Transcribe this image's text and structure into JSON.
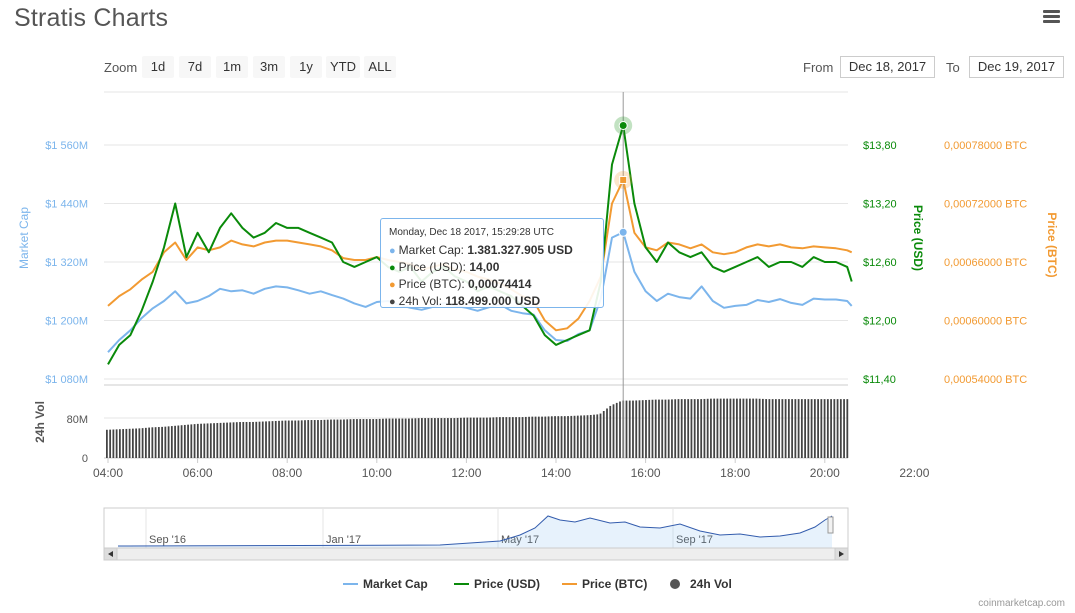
{
  "page": {
    "title": "Stratis Charts",
    "credit": "coinmarketcap.com"
  },
  "colors": {
    "market_cap": "#7cb5ec",
    "price_usd": "#0a8a0a",
    "price_btc": "#f29a32",
    "volume": "#444444",
    "axis_text": "#666666"
  },
  "toolbar": {
    "zoom_label": "Zoom",
    "zoom_buttons": [
      "1d",
      "7d",
      "1m",
      "3m",
      "1y",
      "YTD",
      "ALL"
    ],
    "from_label": "From",
    "from_value": "Dec 18, 2017",
    "to_label": "To",
    "to_value": "Dec 19, 2017"
  },
  "tooltip": {
    "header": "Monday, Dec 18 2017, 15:29:28 UTC",
    "rows": [
      {
        "label": "Market Cap:",
        "value": "1.381.327.905 USD",
        "color": "#7cb5ec"
      },
      {
        "label": "Price (USD):",
        "value": "14,00",
        "color": "#0a8a0a"
      },
      {
        "label": "Price (BTC):",
        "value": "0,00074414",
        "color": "#f29a32"
      },
      {
        "label": "24h Vol:",
        "value": "118.499.000 USD",
        "color": "#444444"
      }
    ]
  },
  "navigator": {
    "labels": [
      "Sep '16",
      "Jan '17",
      "May '17",
      "Sep '17"
    ]
  },
  "legend": [
    "Market Cap",
    "Price (USD)",
    "Price (BTC)",
    "24h Vol"
  ],
  "chart_data": {
    "type": "line",
    "x_hours": [
      4.0,
      4.25,
      4.5,
      4.75,
      5.0,
      5.25,
      5.5,
      5.75,
      6.0,
      6.25,
      6.5,
      6.75,
      7.0,
      7.25,
      7.5,
      7.75,
      8.0,
      8.25,
      8.5,
      8.75,
      9.0,
      9.25,
      9.5,
      9.75,
      10.0,
      10.25,
      10.5,
      10.75,
      11.0,
      11.25,
      11.5,
      11.75,
      12.0,
      12.25,
      12.5,
      12.75,
      13.0,
      13.25,
      13.5,
      13.75,
      14.0,
      14.25,
      14.5,
      14.75,
      15.0,
      15.25,
      15.5,
      15.75,
      16.0,
      16.25,
      16.5,
      16.75,
      17.0,
      17.25,
      17.5,
      17.75,
      18.0,
      18.25,
      18.5,
      18.75,
      19.0,
      19.25,
      19.5,
      19.75,
      20.0,
      20.25,
      20.5,
      20.6
    ],
    "x_tick_labels": [
      "04:00",
      "06:00",
      "08:00",
      "10:00",
      "12:00",
      "14:00",
      "16:00",
      "18:00",
      "20:00",
      "22:00"
    ],
    "x_ticks": [
      4,
      6,
      8,
      10,
      12,
      14,
      16,
      18,
      20,
      22
    ],
    "axes": {
      "market_cap": {
        "label": "Market Cap",
        "ticks": [
          1080,
          1200,
          1320,
          1440,
          1560
        ],
        "tick_labels": [
          "$1 080M",
          "$1 200M",
          "$1 320M",
          "$1 440M",
          "$1 560M"
        ],
        "range": [
          1080,
          1560
        ]
      },
      "price_usd": {
        "label": "Price (USD)",
        "ticks": [
          11.4,
          12.0,
          12.6,
          13.2,
          13.8
        ],
        "tick_labels": [
          "$11,40",
          "$12,00",
          "$12,60",
          "$13,20",
          "$13,80"
        ],
        "range": [
          11.4,
          13.8
        ]
      },
      "price_btc": {
        "label": "Price (BTC)",
        "ticks": [
          0.00054,
          0.0006,
          0.00066,
          0.00072,
          0.00078
        ],
        "tick_labels": [
          "0,00054000 BTC",
          "0,00060000 BTC",
          "0,00066000 BTC",
          "0,00072000 BTC",
          "0,00078000 BTC"
        ],
        "range": [
          0.00054,
          0.00078
        ]
      },
      "volume": {
        "label": "24h Vol",
        "ticks": [
          0,
          80
        ],
        "tick_labels": [
          "0",
          "80M"
        ],
        "range": [
          0,
          150
        ]
      }
    },
    "series": [
      {
        "name": "Market Cap",
        "axis": "market_cap",
        "values": [
          1135,
          1160,
          1180,
          1205,
          1225,
          1240,
          1260,
          1235,
          1240,
          1250,
          1265,
          1260,
          1262,
          1255,
          1265,
          1270,
          1268,
          1262,
          1255,
          1260,
          1252,
          1245,
          1235,
          1228,
          1238,
          1240,
          1232,
          1226,
          1222,
          1228,
          1236,
          1230,
          1226,
          1220,
          1227,
          1233,
          1220,
          1215,
          1212,
          1180,
          1160,
          1158,
          1172,
          1180,
          1245,
          1370,
          1381,
          1300,
          1260,
          1240,
          1255,
          1248,
          1245,
          1270,
          1240,
          1226,
          1230,
          1232,
          1242,
          1238,
          1244,
          1236,
          1232,
          1245,
          1243,
          1243,
          1240,
          1230
        ]
      },
      {
        "name": "Price (USD)",
        "axis": "price_usd",
        "values": [
          11.55,
          11.75,
          11.85,
          12.1,
          12.4,
          12.75,
          13.2,
          12.65,
          12.9,
          12.7,
          12.95,
          13.1,
          12.95,
          12.85,
          12.9,
          13.0,
          12.95,
          12.95,
          12.9,
          12.85,
          12.8,
          12.6,
          12.55,
          12.6,
          12.65,
          12.55,
          12.5,
          12.55,
          12.4,
          12.5,
          12.55,
          12.45,
          12.4,
          12.3,
          12.35,
          12.3,
          12.25,
          12.15,
          12.05,
          11.85,
          11.75,
          11.8,
          11.85,
          11.9,
          12.4,
          13.6,
          14.0,
          13.2,
          12.75,
          12.6,
          12.8,
          12.7,
          12.65,
          12.7,
          12.55,
          12.5,
          12.55,
          12.6,
          12.65,
          12.55,
          12.6,
          12.6,
          12.55,
          12.65,
          12.6,
          12.6,
          12.55,
          12.4
        ]
      },
      {
        "name": "Price (BTC)",
        "axis": "price_btc",
        "values": [
          0.000615,
          0.000625,
          0.000632,
          0.000642,
          0.00065,
          0.00067,
          0.00068,
          0.000662,
          0.000675,
          0.000672,
          0.000675,
          0.000682,
          0.000678,
          0.000676,
          0.00068,
          0.000682,
          0.000682,
          0.00068,
          0.000678,
          0.000676,
          0.000672,
          0.000664,
          0.000662,
          0.000662,
          0.000665,
          0.000662,
          0.00066,
          0.000658,
          0.000652,
          0.000655,
          0.000658,
          0.000652,
          0.00065,
          0.000645,
          0.000642,
          0.000638,
          0.000632,
          0.000625,
          0.00062,
          0.0006,
          0.00059,
          0.000592,
          0.000602,
          0.00062,
          0.000645,
          0.00072,
          0.00074414,
          0.00069,
          0.000675,
          0.000672,
          0.00068,
          0.000678,
          0.000674,
          0.000678,
          0.00067,
          0.000668,
          0.00067,
          0.000675,
          0.000678,
          0.000676,
          0.000678,
          0.000675,
          0.000674,
          0.000676,
          0.000675,
          0.000674,
          0.000672,
          0.00067
        ]
      },
      {
        "name": "24h Vol",
        "axis": "volume",
        "values": [
          58,
          59,
          60,
          61,
          63,
          64,
          66,
          68,
          70,
          71,
          72,
          73,
          74,
          74,
          75,
          76,
          77,
          77,
          78,
          78,
          79,
          79,
          80,
          80,
          80,
          81,
          81,
          81,
          82,
          82,
          82,
          82,
          83,
          83,
          83,
          84,
          84,
          84,
          85,
          85,
          86,
          86,
          87,
          88,
          90,
          108,
          118,
          118,
          119,
          120,
          120,
          121,
          121,
          121,
          122,
          122,
          122,
          122,
          122,
          121,
          121,
          121,
          121,
          121,
          121,
          121,
          121,
          121
        ]
      }
    ],
    "highlight": {
      "x_hour": 15.5,
      "label": "tooltip"
    }
  }
}
